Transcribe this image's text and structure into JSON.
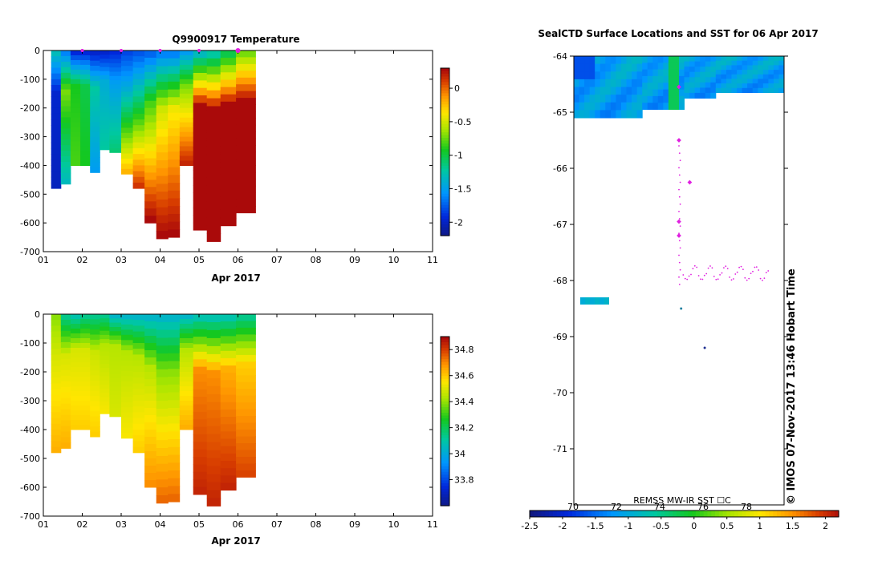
{
  "chart_data": [
    {
      "type": "heatmap",
      "title": "Q9900917  Temperature",
      "xlabel": "Apr 2017",
      "ylabel": "",
      "x_ticks": [
        "01",
        "02",
        "03",
        "04",
        "05",
        "06",
        "07",
        "08",
        "09",
        "10",
        "11"
      ],
      "y_ticks": [
        "0",
        "-100",
        "-200",
        "-300",
        "-400",
        "-500",
        "-600",
        "-700"
      ],
      "ylim": [
        -700,
        0
      ],
      "xlim": [
        1,
        11
      ],
      "colorbar_ticks": [
        "0",
        "-0.5",
        "-1",
        "-1.5",
        "-2"
      ],
      "colorbar_range": [
        -2.2,
        0.3
      ],
      "profiles": [
        {
          "day": 1.25,
          "max_depth": 480,
          "surface": -1.3,
          "mid": -1.95,
          "deep": -2.0
        },
        {
          "day": 1.5,
          "max_depth": 465,
          "surface": -1.6,
          "mid": -0.7,
          "deep": -1.3
        },
        {
          "day": 1.75,
          "max_depth": 400,
          "surface": -1.9,
          "mid": -0.9,
          "deep": -0.8
        },
        {
          "day": 2.0,
          "max_depth": 400,
          "surface": -1.9,
          "mid": -1.0,
          "deep": -0.9
        },
        {
          "day": 2.25,
          "max_depth": 425,
          "surface": -1.95,
          "mid": -1.2,
          "deep": -1.5
        },
        {
          "day": 2.5,
          "max_depth": 345,
          "surface": -1.95,
          "mid": -1.4,
          "deep": -1.2
        },
        {
          "day": 2.75,
          "max_depth": 355,
          "surface": -1.9,
          "mid": -1.5,
          "deep": -1.1
        },
        {
          "day": 3.05,
          "max_depth": 430,
          "surface": -1.8,
          "mid": -1.4,
          "deep": -0.2
        },
        {
          "day": 3.35,
          "max_depth": 480,
          "surface": -1.75,
          "mid": -1.2,
          "deep": 0.15
        },
        {
          "day": 3.65,
          "max_depth": 600,
          "surface": -1.7,
          "mid": -0.8,
          "deep": 0.3
        },
        {
          "day": 3.95,
          "max_depth": 655,
          "surface": -1.6,
          "mid": -0.5,
          "deep": 0.3
        },
        {
          "day": 4.25,
          "max_depth": 650,
          "surface": -1.6,
          "mid": -0.4,
          "deep": 0.3
        },
        {
          "day": 4.55,
          "max_depth": 400,
          "surface": -1.5,
          "mid": -0.7,
          "deep": 0.2
        },
        {
          "day": 4.9,
          "max_depth": 625,
          "surface": -1.3,
          "mid": 0.3,
          "deep": 0.3
        },
        {
          "day": 5.25,
          "max_depth": 665,
          "surface": -1.2,
          "mid": 0.3,
          "deep": 0.3
        },
        {
          "day": 5.6,
          "max_depth": 610,
          "surface": -1.0,
          "mid": 0.3,
          "deep": 0.3
        },
        {
          "day": 6.0,
          "max_depth": 565,
          "surface": -0.7,
          "mid": 0.3,
          "deep": 0.3
        }
      ]
    },
    {
      "type": "heatmap",
      "title": "",
      "xlabel": "Apr 2017",
      "ylabel": "",
      "x_ticks": [
        "01",
        "02",
        "03",
        "04",
        "05",
        "06",
        "07",
        "08",
        "09",
        "10",
        "11"
      ],
      "y_ticks": [
        "0",
        "-100",
        "-200",
        "-300",
        "-400",
        "-500",
        "-600",
        "-700"
      ],
      "ylim": [
        -700,
        0
      ],
      "xlim": [
        1,
        11
      ],
      "colorbar_ticks": [
        "34.8",
        "34.6",
        "34.4",
        "34.2",
        "34",
        "33.8"
      ],
      "colorbar_range": [
        33.6,
        34.9
      ],
      "profiles": [
        {
          "day": 1.25,
          "max_depth": 480,
          "surface": 34.4,
          "mid": 34.5,
          "deep": 34.65
        },
        {
          "day": 1.5,
          "max_depth": 465,
          "surface": 34.15,
          "mid": 34.5,
          "deep": 34.65
        },
        {
          "day": 1.75,
          "max_depth": 400,
          "surface": 34.1,
          "mid": 34.5,
          "deep": 34.6
        },
        {
          "day": 2.0,
          "max_depth": 400,
          "surface": 34.15,
          "mid": 34.5,
          "deep": 34.6
        },
        {
          "day": 2.25,
          "max_depth": 425,
          "surface": 34.15,
          "mid": 34.48,
          "deep": 34.6
        },
        {
          "day": 2.5,
          "max_depth": 345,
          "surface": 34.15,
          "mid": 34.45,
          "deep": 34.55
        },
        {
          "day": 2.75,
          "max_depth": 355,
          "surface": 34.05,
          "mid": 34.45,
          "deep": 34.5
        },
        {
          "day": 3.05,
          "max_depth": 430,
          "surface": 34.05,
          "mid": 34.45,
          "deep": 34.55
        },
        {
          "day": 3.35,
          "max_depth": 480,
          "surface": 34.05,
          "mid": 34.45,
          "deep": 34.6
        },
        {
          "day": 3.65,
          "max_depth": 600,
          "surface": 34.05,
          "mid": 34.45,
          "deep": 34.7
        },
        {
          "day": 3.95,
          "max_depth": 655,
          "surface": 34.05,
          "mid": 34.4,
          "deep": 34.75
        },
        {
          "day": 4.25,
          "max_depth": 650,
          "surface": 34.05,
          "mid": 34.4,
          "deep": 34.75
        },
        {
          "day": 4.55,
          "max_depth": 400,
          "surface": 34.05,
          "mid": 34.45,
          "deep": 34.65
        },
        {
          "day": 4.9,
          "max_depth": 625,
          "surface": 34.1,
          "mid": 34.7,
          "deep": 34.85
        },
        {
          "day": 5.25,
          "max_depth": 665,
          "surface": 34.1,
          "mid": 34.7,
          "deep": 34.85
        },
        {
          "day": 5.6,
          "max_depth": 610,
          "surface": 34.1,
          "mid": 34.65,
          "deep": 34.85
        },
        {
          "day": 6.0,
          "max_depth": 565,
          "surface": 34.15,
          "mid": 34.6,
          "deep": 34.8
        }
      ]
    },
    {
      "type": "scatter",
      "title": "SealCTD Surface Locations and SST for 06 Apr 2017",
      "xlabel": "",
      "ylabel": "",
      "y_ticks": [
        "-64",
        "-65",
        "-66",
        "-67",
        "-68",
        "-69",
        "-70",
        "-71"
      ],
      "ylim": [
        -72,
        -64
      ],
      "x_tick_labels_top": [
        "70",
        "72",
        "74",
        "76",
        "78"
      ],
      "colorbar_label": "REMSS MW-IR SST ☐C",
      "colorbar_ticks": [
        "-2.5",
        "-2",
        "-1.5",
        "-1",
        "-0.5",
        "0",
        "0.5",
        "1",
        "1.5",
        "2"
      ],
      "colorbar_range": [
        -2.5,
        2.2
      ],
      "surface_locations": [
        {
          "lon": 74.4,
          "lat": -64.55
        },
        {
          "lon": 74.4,
          "lat": -65.5
        },
        {
          "lon": 74.9,
          "lat": -66.25
        },
        {
          "lon": 74.4,
          "lat": -66.95
        },
        {
          "lon": 74.4,
          "lat": -67.2
        }
      ],
      "stamp": "© IMOS 07-Nov-2017 13:46 Hobart Time"
    }
  ]
}
